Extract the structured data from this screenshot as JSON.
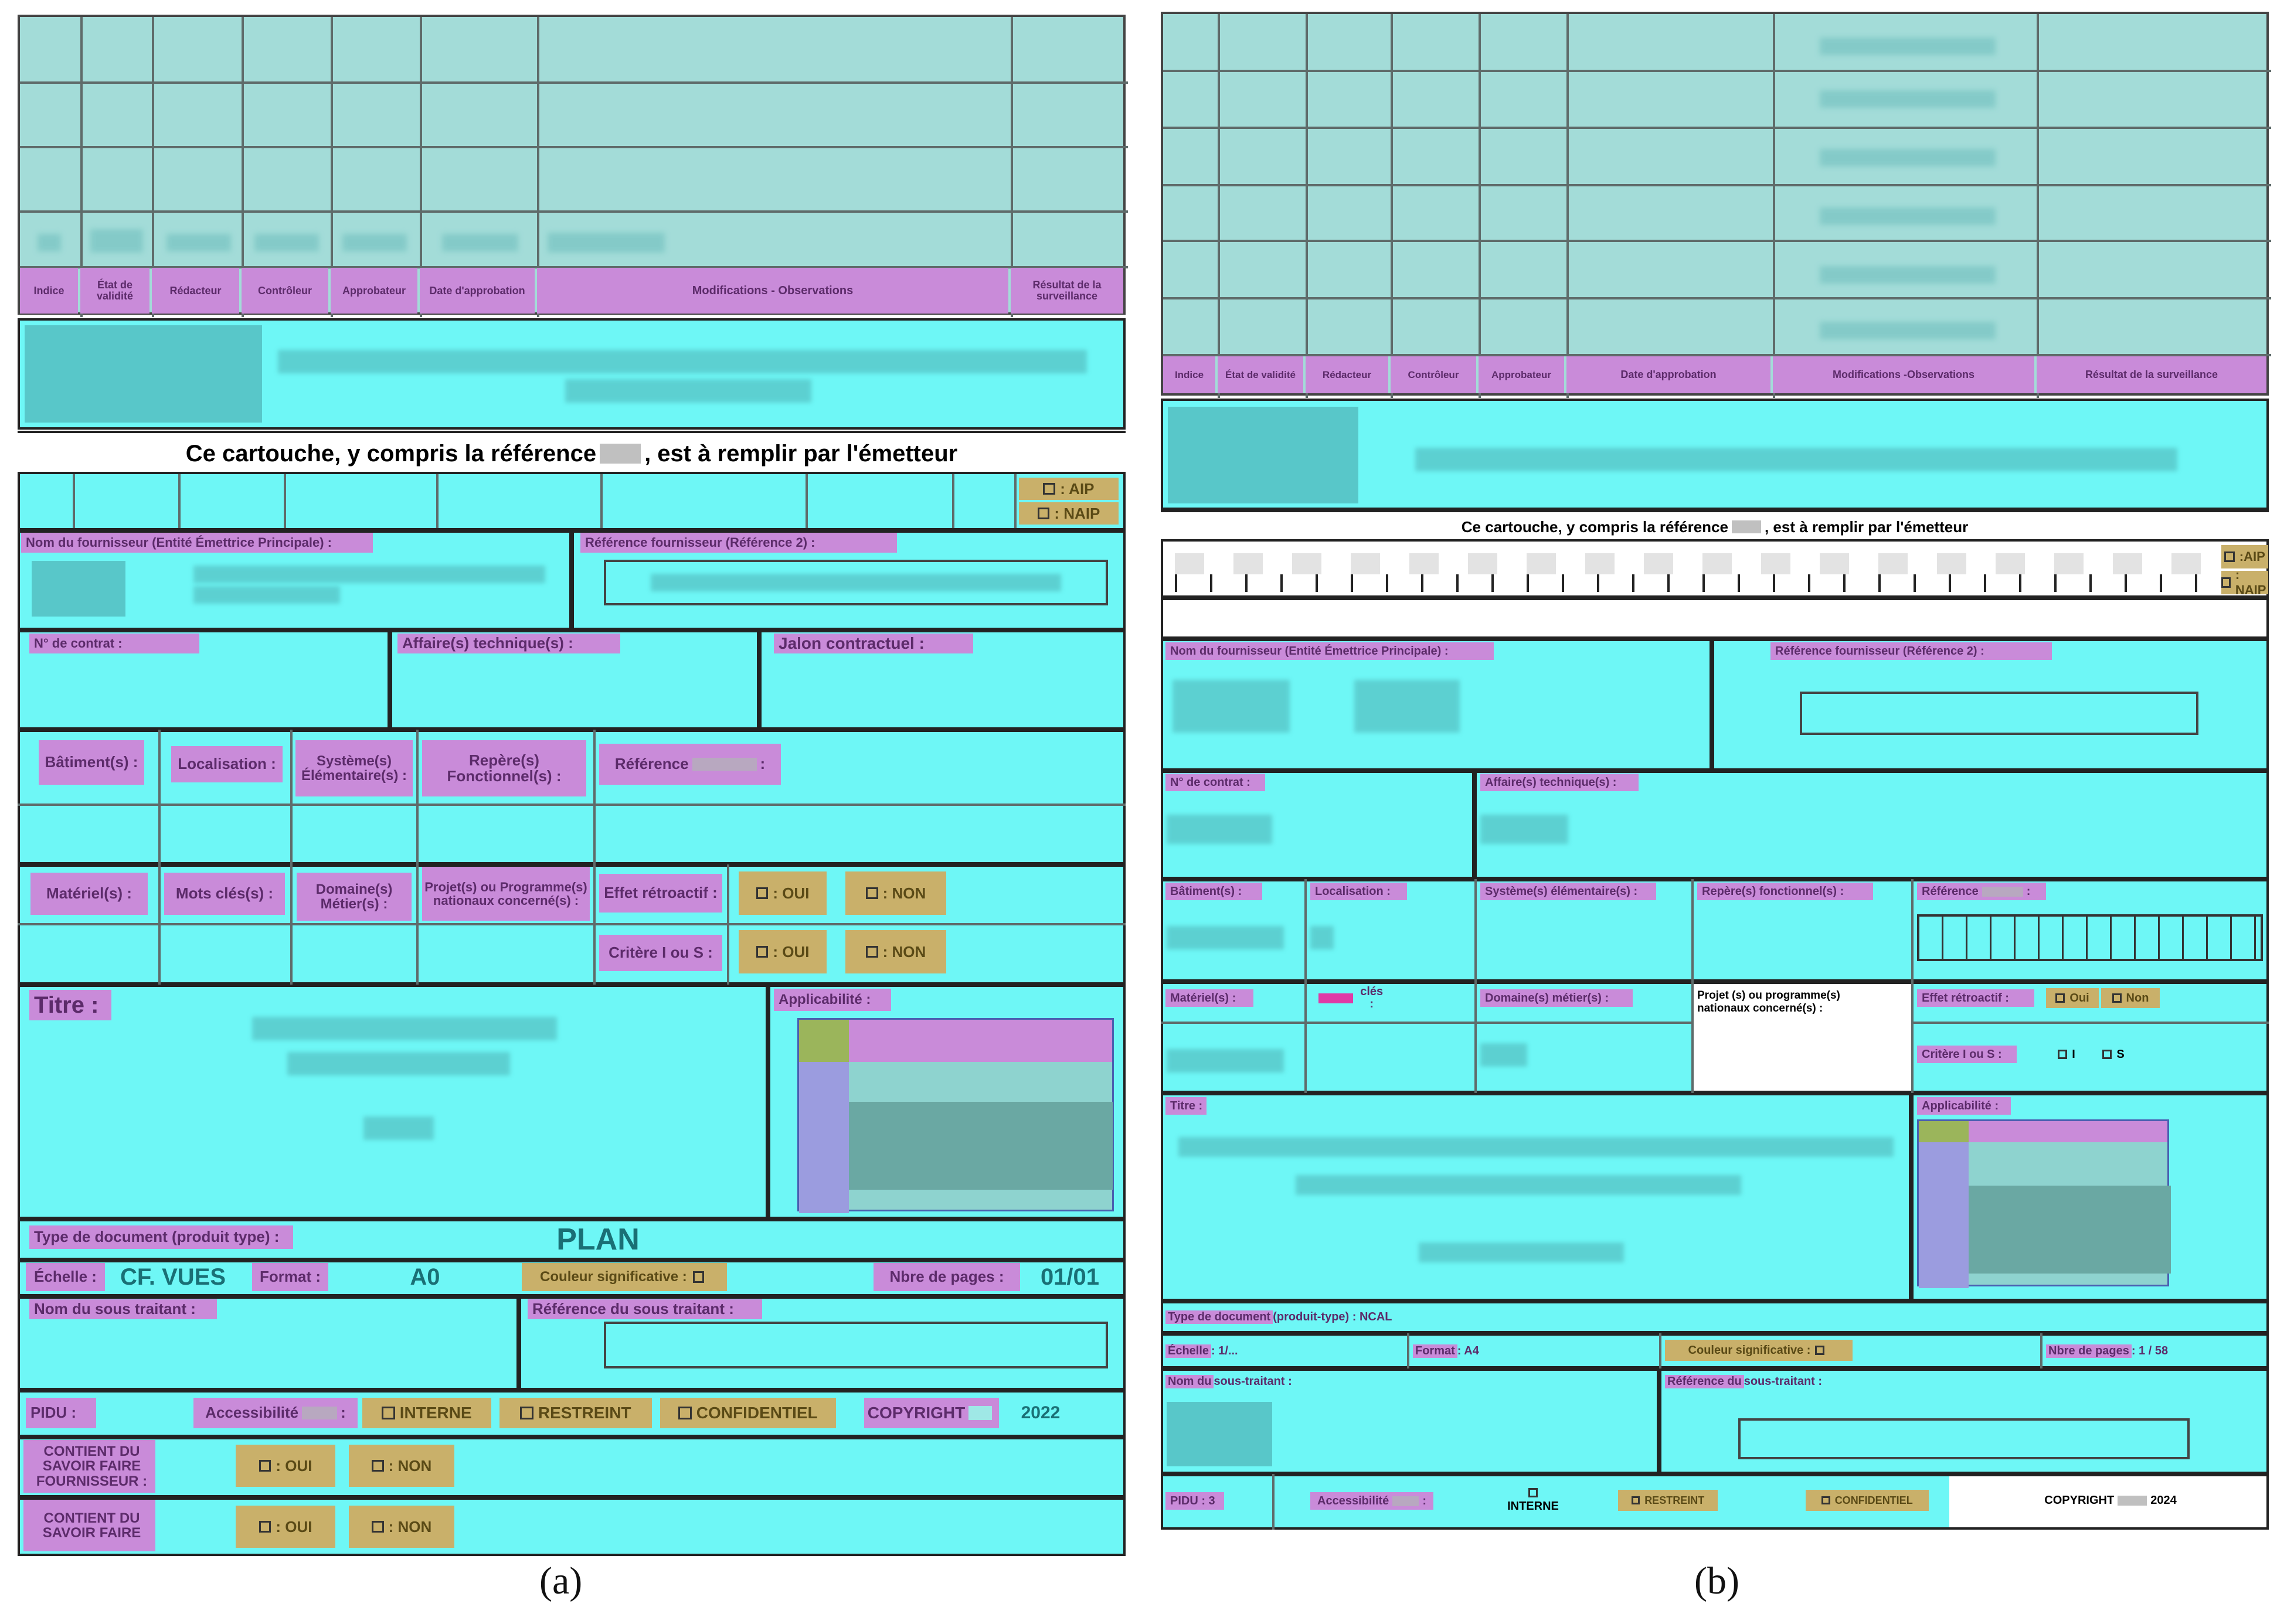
{
  "panel_a": {
    "rev_headers": [
      "Indice",
      "État de validité",
      "Rédacteur",
      "Contrôleur",
      "Approbateur",
      "Date d'approbation",
      "Modifications - Observations",
      "Résultat de la surveillance"
    ],
    "emitter_note": "Ce cartouche, y compris la référence ",
    "emitter_note_end": ", est à remplir par l'émetteur",
    "aip": ": AIP",
    "naip": ": NAIP",
    "fournisseur": "Nom du fournisseur (Entité Émettrice Principale) :",
    "ref_fournisseur": "Référence fournisseur (Référence 2) :",
    "contrat": "N° de contrat :",
    "affaires": "Affaire(s) technique(s) :",
    "jalon": "Jalon contractuel :",
    "batiments": "Bâtiment(s) :",
    "localisation": "Localisation :",
    "systemes": "Système(s) Élémentaire(s) :",
    "reperes": "Repère(s) Fonctionnel(s) :",
    "reference": "Référence",
    "materiels": "Matériel(s) :",
    "mots_cles": "Mots clés(s) :",
    "domaines": "Domaine(s) Métier(s) :",
    "projets": "Projet(s) ou Programme(s) nationaux concerné(s) :",
    "effet": "Effet rétroactif :",
    "critere": "Critère I ou S :",
    "oui": ": OUI",
    "non": ": NON",
    "titre": "Titre :",
    "applicabilite": "Applicabilité :",
    "type_doc": "Type de document (produit type) :",
    "type_doc_value": "PLAN",
    "echelle": "Échelle :",
    "echelle_value": "CF. VUES",
    "format": "Format :",
    "format_value": "A0",
    "couleur": "Couleur significative :",
    "nbre_pages": "Nbre de pages :",
    "nbre_pages_value": "01/01",
    "sous_traitant": "Nom du sous traitant :",
    "ref_sous_traitant": "Référence du sous traitant :",
    "pidu": "PIDU :",
    "accessibilite": "Accessibilité",
    "interne": "INTERNE",
    "restreint": "RESTREINT",
    "confidentiel": "CONFIDENTIEL",
    "copyright": "COPYRIGHT",
    "copyright_year": "2022",
    "savoir_fournisseur": "CONTIENT DU SAVOIR FAIRE FOURNISSEUR :",
    "savoir": "CONTIENT DU SAVOIR FAIRE",
    "caption": "(a)"
  },
  "panel_b": {
    "rev_headers": [
      "Indice",
      "État de validité",
      "Rédacteur",
      "Contrôleur",
      "Approbateur",
      "Date d'approbation",
      "Modifications -Observations",
      "Résultat de la surveillance"
    ],
    "emitter_note": "Ce cartouche, y compris la référence ",
    "emitter_note_end": ", est à remplir par l'émetteur",
    "aip": ":AIP",
    "naip": ": NAIP",
    "fournisseur": "Nom du fournisseur (Entité Émettrice Principale) :",
    "ref_fournisseur": "Référence fournisseur (Référence 2) :",
    "contrat": "N° de contrat :",
    "affaires": "Affaire(s) technique(s) :",
    "batiments": "Bâtiment(s) :",
    "localisation": "Localisation :",
    "systemes": "Système(s) élémentaire(s) :",
    "reperes": "Repère(s) fonctionnel(s) :",
    "reference": "Référence",
    "materiels": "Matériel(s) :",
    "mots_cles": "clés :",
    "domaines": "Domaine(s) métier(s) :",
    "projets": "Projet (s) ou programme(s) nationaux concerné(s) :",
    "effet": "Effet rétroactif :",
    "oui": "Oui",
    "non": "Non",
    "critere": "Critère I ou S :",
    "opt_i": "I",
    "opt_s": "S",
    "titre": "Titre :",
    "applicabilite": "Applicabilité :",
    "type_doc": "Type de document",
    "type_doc_rest": " (produit-type) : NCAL",
    "echelle": "Échelle",
    "echelle_value": " : 1/...",
    "format": "Format",
    "format_value": " : A4",
    "couleur": "Couleur significative :",
    "nbre_pages": "Nbre de pages",
    "nbre_pages_value": " : 1 / 58",
    "sous_traitant": "Nom du",
    "sous_traitant_rest": " sous-traitant :",
    "ref_sous_traitant": "Référence du",
    "ref_sous_traitant_rest": " sous-traitant :",
    "pidu": "PIDU : 3",
    "accessibilite": "Accessibilité",
    "interne": "INTERNE",
    "restreint": "RESTREINT",
    "confidentiel": "CONFIDENTIEL",
    "copyright": "COPYRIGHT",
    "copyright_year": "2024",
    "caption": "(b)"
  }
}
